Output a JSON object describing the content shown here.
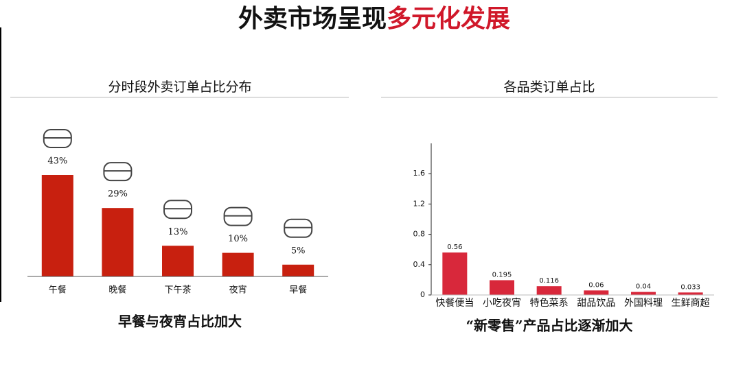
{
  "header": {
    "title_dark": "外卖市场呈现",
    "title_red": "多元化发展"
  },
  "chart_data": [
    {
      "type": "bar",
      "title": "分时段外卖订单占比分布",
      "categories": [
        "午餐",
        "晚餐",
        "下午茶",
        "夜宵",
        "早餐"
      ],
      "values": [
        43,
        29,
        13,
        10,
        5
      ],
      "value_labels": [
        "43%",
        "29%",
        "13%",
        "10%",
        "5%"
      ],
      "color": "#c8200f",
      "caption": "早餐与夜宵占比加大"
    },
    {
      "type": "bar",
      "title": "各品类订单占比",
      "categories": [
        "快餐便当",
        "小吃夜宵",
        "特色菜系",
        "甜品饮品",
        "外国料理",
        "生鲜商超"
      ],
      "values": [
        0.56,
        0.195,
        0.116,
        0.06,
        0.04,
        0.033
      ],
      "color": "#d8283b",
      "ylim": [
        0,
        2
      ],
      "yticks": [
        0,
        0.4,
        0.8,
        1.2,
        1.6
      ],
      "caption": "“新零售”产品占比逐渐加大"
    }
  ]
}
